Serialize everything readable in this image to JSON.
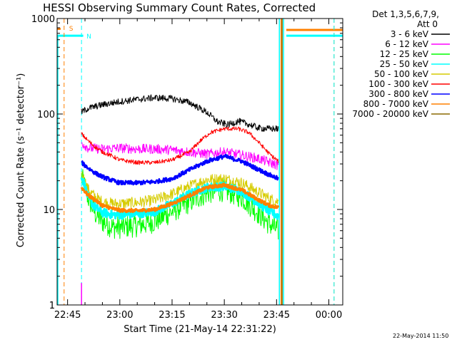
{
  "chart_data": {
    "type": "line",
    "title": "HESSI Observing Summary Count Rates, Corrected",
    "xlabel": "Start Time (21-May-14 22:31:22)",
    "ylabel": "Corrected Count Rate (s⁻¹ detector⁻¹)",
    "y_scale": "log",
    "ylim": [
      1,
      1000
    ],
    "xlim_minutes": [
      -18,
      64
    ],
    "x_tick_labels": [
      "22:45",
      "23:00",
      "23:15",
      "23:30",
      "23:45",
      "00:00"
    ],
    "x_tick_minutes": [
      -15,
      0,
      15,
      30,
      45,
      60
    ],
    "y_tick_labels": [
      "1",
      "10",
      "100",
      "1000"
    ],
    "y_tick_values": [
      1,
      10,
      100,
      1000
    ],
    "legend_header": [
      "Det 1,3,5,6,7,9,",
      "Att 0"
    ],
    "legend_location": "outside-right",
    "series": [
      {
        "name": "3 - 6 keV",
        "color": "#000000",
        "x": [
          -11,
          -9,
          -5,
          0,
          5,
          10,
          15,
          20,
          25,
          28,
          31,
          34,
          37,
          40,
          43,
          45.5
        ],
        "y": [
          105,
          115,
          125,
          135,
          142,
          148,
          145,
          132,
          104,
          83,
          77,
          84,
          78,
          71,
          70,
          70
        ],
        "noise": 0.08
      },
      {
        "name": "6 - 12 keV",
        "color": "#ff00ff",
        "x": [
          -11,
          -9,
          -5,
          0,
          5,
          10,
          15,
          20,
          25,
          30,
          35,
          40,
          43,
          45.5
        ],
        "y": [
          50,
          44,
          43,
          44,
          43,
          43,
          42,
          40,
          38,
          40,
          37,
          34,
          31,
          29
        ],
        "noise": 0.12
      },
      {
        "name": "12 - 25 keV",
        "color": "#00ff00",
        "x": [
          -11,
          -9,
          -7,
          -5,
          -2,
          0,
          5,
          10,
          15,
          20,
          25,
          30,
          35,
          40,
          43,
          45.5
        ],
        "y": [
          22,
          13,
          9,
          7.5,
          6.5,
          6.5,
          6.8,
          7.5,
          9.5,
          12,
          15,
          16,
          13.5,
          9,
          7,
          6
        ],
        "noise": 0.28
      },
      {
        "name": "25 - 50 keV",
        "color": "#00ffff",
        "x": [
          -11,
          -9,
          -7,
          -5,
          -2,
          0,
          5,
          10,
          15,
          20,
          25,
          30,
          35,
          40,
          43,
          45.5
        ],
        "y": [
          23,
          13,
          10.5,
          9.3,
          8.8,
          8.8,
          9.0,
          9.5,
          11.5,
          14.5,
          17,
          17.5,
          15.5,
          11.5,
          9.5,
          8.5
        ],
        "noise": 0.1
      },
      {
        "name": "50 - 100 keV",
        "color": "#d6cc00",
        "x": [
          -11,
          -9,
          -7,
          -5,
          -2,
          0,
          5,
          10,
          15,
          20,
          25,
          30,
          35,
          40,
          43,
          45.5
        ],
        "y": [
          24,
          16,
          13.5,
          12,
          11.5,
          11.5,
          11.8,
          12.5,
          14.5,
          17.5,
          20.5,
          21,
          19,
          15,
          13,
          12
        ],
        "noise": 0.14
      },
      {
        "name": "100 - 300 keV",
        "color": "#ff0000",
        "x": [
          -11,
          -9,
          -7,
          -5,
          -2,
          0,
          5,
          10,
          15,
          20,
          23,
          26,
          30,
          34,
          37,
          40,
          43,
          45.5
        ],
        "y": [
          62,
          52,
          45,
          40,
          36,
          33,
          31,
          31,
          33,
          40,
          52,
          64,
          70,
          70,
          64,
          50,
          38,
          32
        ],
        "noise": 0.05
      },
      {
        "name": "300 - 800 keV",
        "color": "#0000ff",
        "x": [
          -11,
          -9,
          -7,
          -5,
          -2,
          0,
          5,
          10,
          15,
          20,
          25,
          30,
          35,
          40,
          43,
          45.5
        ],
        "y": [
          31,
          27,
          24,
          22,
          20,
          19,
          19,
          19.5,
          21,
          26,
          32,
          36,
          32,
          26,
          23,
          21
        ],
        "noise": 0.05
      },
      {
        "name": "800 - 7000 keV",
        "color": "#ff8000",
        "x": [
          -11,
          -9,
          -7,
          -5,
          -2,
          0,
          5,
          10,
          15,
          20,
          25,
          30,
          35,
          40,
          43,
          45.5
        ],
        "y": [
          17,
          14,
          12.5,
          11,
          10.2,
          9.8,
          9.7,
          10,
          11.5,
          14,
          17,
          18,
          16,
          12.5,
          11,
          10.5
        ],
        "noise": 0.04
      },
      {
        "name": "7000 - 20000 keV",
        "color": "#8b6a00",
        "x": [],
        "y": [],
        "noise": 0
      }
    ],
    "annotations": [
      {
        "text": "S",
        "color": "#ff8000",
        "x_minute": -16,
        "style": "dashed-vertical",
        "label_y": 800
      },
      {
        "text": "N",
        "color": "#00ffff",
        "x_minute": -11,
        "style": "dashed-vertical",
        "label_y": 660
      },
      {
        "color": "#ff8000",
        "x_minute": 61.5,
        "style": "dashed-vertical"
      },
      {
        "color": "#00ffff",
        "x_minute": 61.5,
        "style": "dashed-vertical"
      }
    ],
    "status_bars": [
      {
        "color": "#ff8000",
        "y": 780,
        "x_from": -18,
        "x_to": -17
      },
      {
        "color": "#00ffff",
        "y": 660,
        "x_from": -18,
        "x_to": -10.5
      },
      {
        "color": "#ff8000",
        "y": 760,
        "x_from": 47.8,
        "x_to": 64
      },
      {
        "color": "#00ffff",
        "y": 660,
        "x_from": 47.8,
        "x_to": 64
      }
    ],
    "spike": {
      "x_minute": -11,
      "y_from": 1,
      "y_to": 1.7,
      "color": "#ff00ff"
    },
    "gap_lines": [
      {
        "x_minute": 45.8,
        "color": "#00ffff"
      },
      {
        "x_minute": 46.3,
        "color": "#ff8000"
      },
      {
        "x_minute": 46.6,
        "color": "#8b6a00"
      },
      {
        "x_minute": 47.0,
        "color": "#00ffff"
      }
    ]
  },
  "footer_date": "22-May-2014 11:50"
}
